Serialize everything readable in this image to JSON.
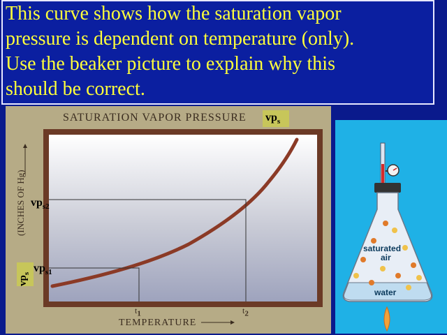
{
  "title_lines": [
    "This curve shows how the saturation vapor",
    "pressure is dependent on temperature (only).",
    "Use the beaker picture to explain why this",
    "should be correct."
  ],
  "chart": {
    "title": "SATURATION VAPOR PRESSURE",
    "vps_label": "vp",
    "vps_sub": "s",
    "y_axis_label": "(INCHES OF Hg)",
    "x_axis_label": "TEMPERATURE",
    "t1_label": "t",
    "t1_sub": "1",
    "t2_label": "t",
    "t2_sub": "2",
    "vps1_label": "vp",
    "vps1_sub": "s1",
    "vps2_label": "vp",
    "vps2_sub": "s2",
    "y_tag_label": "vp",
    "y_tag_sub": "s"
  },
  "beaker": {
    "saturated_label": "saturated",
    "air_label": "air",
    "water_label": "water"
  },
  "colors": {
    "background": "#0a1a8c",
    "title_text": "#ffff3a",
    "curve": "#8b3a26",
    "frame": "#6b3a26",
    "beaker_bg": "#1fb1e6"
  }
}
